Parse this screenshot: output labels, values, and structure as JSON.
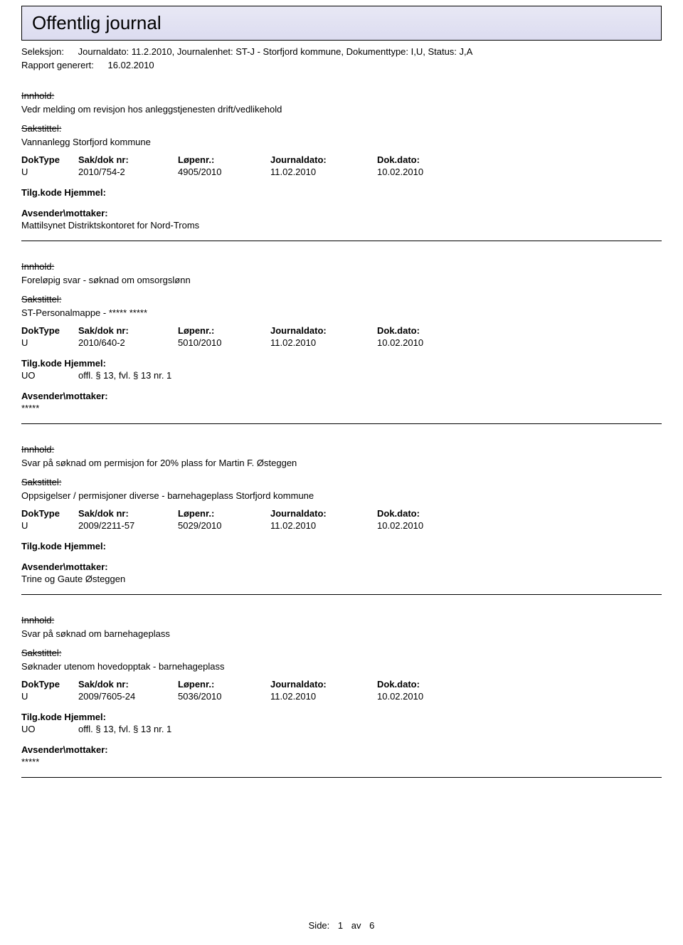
{
  "header": {
    "title": "Offentlig journal"
  },
  "meta": {
    "seleksjon_label": "Seleksjon:",
    "seleksjon_value": "Journaldato: 11.2.2010, Journalenhet: ST-J - Storfjord kommune, Dokumenttype: I,U, Status: J,A",
    "rapport_label": "Rapport generert:",
    "rapport_value": "16.02.2010"
  },
  "labels": {
    "innhold": "Innhold:",
    "sakstitle": "Sakstittel:",
    "doktype": "DokType",
    "sakdok": "Sak/dok nr:",
    "lopenr": "Løpenr.:",
    "journaldato": "Journaldato:",
    "dokdato": "Dok.dato:",
    "tilgkode": "Tilg.kode Hjemmel:",
    "avsender": "Avsender\\mottaker:"
  },
  "entries": [
    {
      "innhold": "Vedr melding om revisjon hos anleggstjenesten drift/vedlikehold",
      "sakstitle": "Vannanlegg Storfjord kommune",
      "doktype": "U",
      "sakdok": "2010/754-2",
      "lopenr": "4905/2010",
      "journaldato": "11.02.2010",
      "dokdato": "10.02.2010",
      "tilg_code": "",
      "tilg_text": "",
      "avsender": "Mattilsynet Distriktskontoret for Nord-Troms"
    },
    {
      "innhold": "Foreløpig svar - søknad om omsorgslønn",
      "sakstitle": "ST-Personalmappe - ***** *****",
      "doktype": "U",
      "sakdok": "2010/640-2",
      "lopenr": "5010/2010",
      "journaldato": "11.02.2010",
      "dokdato": "10.02.2010",
      "tilg_code": "UO",
      "tilg_text": "offl. § 13, fvl. § 13 nr. 1",
      "avsender": "*****"
    },
    {
      "innhold": "Svar på søknad om permisjon for 20% plass for Martin F. Østeggen",
      "sakstitle": "Oppsigelser / permisjoner diverse - barnehageplass Storfjord kommune",
      "doktype": "U",
      "sakdok": "2009/2211-57",
      "lopenr": "5029/2010",
      "journaldato": "11.02.2010",
      "dokdato": "10.02.2010",
      "tilg_code": "",
      "tilg_text": "",
      "avsender": "Trine og Gaute Østeggen"
    },
    {
      "innhold": "Svar på søknad om barnehageplass",
      "sakstitle": "Søknader utenom hovedopptak - barnehageplass",
      "doktype": "U",
      "sakdok": "2009/7605-24",
      "lopenr": "5036/2010",
      "journaldato": "11.02.2010",
      "dokdato": "10.02.2010",
      "tilg_code": "UO",
      "tilg_text": "offl. § 13, fvl. § 13 nr. 1",
      "avsender": "*****"
    }
  ],
  "footer": {
    "side": "Side:",
    "page": "1",
    "av": "av",
    "total": "6"
  }
}
